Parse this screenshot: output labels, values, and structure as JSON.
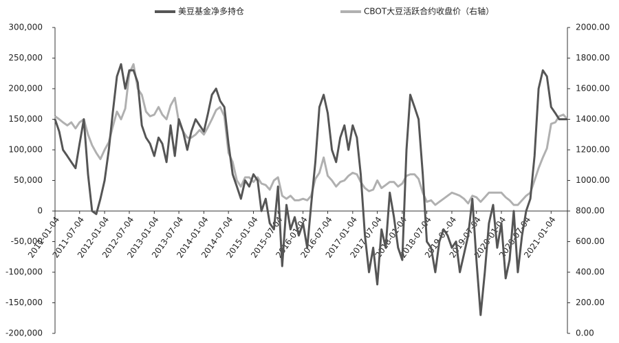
{
  "chart_data": {
    "type": "line",
    "xlim": [
      "2011-01-04",
      "2021-05-04"
    ],
    "xticks": [
      "2011-01-04",
      "2011-07-04",
      "2012-01-04",
      "2012-07-04",
      "2013-01-04",
      "2013-07-04",
      "2014-01-04",
      "2014-07-04",
      "2015-01-04",
      "2015-07-04",
      "2016-01-04",
      "2016-07-04",
      "2017-01-04",
      "2017-07-04",
      "2018-01-04",
      "2018-07-04",
      "2019-01-04",
      "2019-07-04",
      "2020-01-04",
      "2020-07-04",
      "2021-01-04"
    ],
    "x": [
      "2011-01-04",
      "2011-02-04",
      "2011-03-04",
      "2011-04-04",
      "2011-05-04",
      "2011-06-04",
      "2011-07-04",
      "2011-08-04",
      "2011-09-04",
      "2011-10-04",
      "2011-11-04",
      "2011-12-04",
      "2012-01-04",
      "2012-02-04",
      "2012-03-04",
      "2012-04-04",
      "2012-05-04",
      "2012-06-04",
      "2012-07-04",
      "2012-08-04",
      "2012-09-04",
      "2012-10-04",
      "2012-11-04",
      "2012-12-04",
      "2013-01-04",
      "2013-02-04",
      "2013-03-04",
      "2013-04-04",
      "2013-05-04",
      "2013-06-04",
      "2013-07-04",
      "2013-08-04",
      "2013-09-04",
      "2013-10-04",
      "2013-11-04",
      "2013-12-04",
      "2014-01-04",
      "2014-02-04",
      "2014-03-04",
      "2014-04-04",
      "2014-05-04",
      "2014-06-04",
      "2014-07-04",
      "2014-08-04",
      "2014-09-04",
      "2014-10-04",
      "2014-11-04",
      "2014-12-04",
      "2015-01-04",
      "2015-02-04",
      "2015-03-04",
      "2015-04-04",
      "2015-05-04",
      "2015-06-04",
      "2015-07-04",
      "2015-08-04",
      "2015-09-04",
      "2015-10-04",
      "2015-11-04",
      "2015-12-04",
      "2016-01-04",
      "2016-02-04",
      "2016-03-04",
      "2016-04-04",
      "2016-05-04",
      "2016-06-04",
      "2016-07-04",
      "2016-08-04",
      "2016-09-04",
      "2016-10-04",
      "2016-11-04",
      "2016-12-04",
      "2017-01-04",
      "2017-02-04",
      "2017-03-04",
      "2017-04-04",
      "2017-05-04",
      "2017-06-04",
      "2017-07-04",
      "2017-08-04",
      "2017-09-04",
      "2017-10-04",
      "2017-11-04",
      "2017-12-04",
      "2018-01-04",
      "2018-02-04",
      "2018-03-04",
      "2018-04-04",
      "2018-05-04",
      "2018-06-04",
      "2018-07-04",
      "2018-08-04",
      "2018-09-04",
      "2018-10-04",
      "2018-11-04",
      "2018-12-04",
      "2019-01-04",
      "2019-02-04",
      "2019-03-04",
      "2019-04-04",
      "2019-05-04",
      "2019-06-04",
      "2019-07-04",
      "2019-08-04",
      "2019-09-04",
      "2019-10-04",
      "2019-11-04",
      "2019-12-04",
      "2020-01-04",
      "2020-02-04",
      "2020-03-04",
      "2020-04-04",
      "2020-05-04",
      "2020-06-04",
      "2020-07-04",
      "2020-08-04",
      "2020-09-04",
      "2020-10-04",
      "2020-11-04",
      "2020-12-04",
      "2021-01-04",
      "2021-02-04",
      "2021-03-04",
      "2021-04-04",
      "2021-05-04"
    ],
    "ylim": [
      -200000,
      300000
    ],
    "yticks": [
      {
        "value": -200000,
        "label": "-200,000"
      },
      {
        "value": -150000,
        "label": "-150,000"
      },
      {
        "value": -100000,
        "label": "-100,000"
      },
      {
        "value": -50000,
        "label": "-50,000"
      },
      0,
      {
        "value": 50000,
        "label": "50,000"
      },
      {
        "value": 100000,
        "label": "100,000"
      },
      {
        "value": 150000,
        "label": "150,000"
      },
      {
        "value": 200000,
        "label": "200,000"
      },
      {
        "value": 250000,
        "label": "250,000"
      },
      {
        "value": 300000,
        "label": "300,000"
      }
    ],
    "y2lim": [
      0,
      2000
    ],
    "y2ticks": [
      {
        "value": 0,
        "label": "0.00"
      },
      {
        "value": 200,
        "label": "200.00"
      },
      {
        "value": 400,
        "label": "400.00"
      },
      {
        "value": 600,
        "label": "600.00"
      },
      {
        "value": 800,
        "label": "800.00"
      },
      {
        "value": 1000,
        "label": "1000.00"
      },
      {
        "value": 1200,
        "label": "1200.00"
      },
      {
        "value": 1400,
        "label": "1400.00"
      },
      {
        "value": 1600,
        "label": "1600.00"
      },
      {
        "value": 1800,
        "label": "1800.00"
      },
      {
        "value": 2000,
        "label": "2000.00"
      }
    ],
    "series": [
      {
        "name": "美豆基金净多持仓",
        "color": "#555555",
        "values": [
          150000,
          130000,
          100000,
          90000,
          80000,
          70000,
          110000,
          150000,
          60000,
          0,
          -5000,
          20000,
          50000,
          100000,
          160000,
          220000,
          240000,
          200000,
          230000,
          230000,
          210000,
          140000,
          120000,
          110000,
          90000,
          120000,
          110000,
          80000,
          140000,
          90000,
          150000,
          130000,
          100000,
          130000,
          150000,
          140000,
          130000,
          160000,
          190000,
          200000,
          180000,
          170000,
          110000,
          60000,
          40000,
          20000,
          50000,
          40000,
          60000,
          50000,
          0,
          20000,
          -20000,
          -30000,
          40000,
          -90000,
          10000,
          -30000,
          -10000,
          -40000,
          -20000,
          -60000,
          10000,
          80000,
          170000,
          190000,
          160000,
          100000,
          80000,
          120000,
          140000,
          100000,
          140000,
          120000,
          60000,
          -40000,
          -100000,
          -60000,
          -120000,
          -30000,
          -60000,
          30000,
          -10000,
          -60000,
          -80000,
          100000,
          190000,
          170000,
          150000,
          60000,
          -50000,
          -60000,
          -100000,
          -50000,
          -30000,
          -40000,
          -60000,
          -50000,
          -100000,
          -70000,
          -40000,
          20000,
          -80000,
          -170000,
          -100000,
          -20000,
          10000,
          -60000,
          -20000,
          -110000,
          -80000,
          0,
          -100000,
          -40000,
          0,
          20000,
          90000,
          200000,
          230000,
          220000,
          170000,
          160000,
          150000,
          150000,
          150000
        ]
      },
      {
        "name": "CBOT大豆活跃合约收盘价（右轴）",
        "color": "#b0b0b0",
        "axis": "y2",
        "values": [
          1420,
          1400,
          1380,
          1360,
          1380,
          1340,
          1380,
          1400,
          1300,
          1230,
          1180,
          1140,
          1200,
          1250,
          1350,
          1450,
          1400,
          1470,
          1700,
          1760,
          1600,
          1560,
          1450,
          1420,
          1430,
          1480,
          1430,
          1400,
          1490,
          1540,
          1380,
          1320,
          1280,
          1280,
          1300,
          1330,
          1300,
          1350,
          1400,
          1460,
          1480,
          1420,
          1180,
          1120,
          1000,
          960,
          1020,
          1020,
          990,
          1020,
          980,
          970,
          940,
          1000,
          1020,
          900,
          880,
          900,
          870,
          870,
          880,
          870,
          900,
          1010,
          1050,
          1150,
          1030,
          1000,
          960,
          990,
          1000,
          1030,
          1050,
          1040,
          990,
          950,
          930,
          940,
          1000,
          950,
          970,
          990,
          990,
          960,
          980,
          1030,
          1040,
          1040,
          1010,
          920,
          860,
          870,
          840,
          860,
          880,
          900,
          920,
          910,
          900,
          880,
          850,
          900,
          890,
          860,
          890,
          920,
          920,
          920,
          920,
          890,
          870,
          840,
          840,
          870,
          900,
          920,
          1000,
          1080,
          1150,
          1210,
          1370,
          1380,
          1420,
          1430,
          1400
        ]
      }
    ]
  }
}
